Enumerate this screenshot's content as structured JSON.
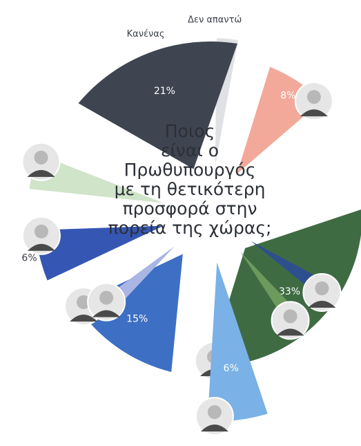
{
  "chart_data": {
    "type": "pie",
    "title": "Ποιος είναι ο Πρωθυπουργός με τη θετικότερη προσφορά στην πορεία της χώρας;",
    "title_lines": [
      "Ποιος",
      "είναι ο",
      "Πρωθυπουργός",
      "με τη θετικότερη",
      "προσφορά στην",
      "πορεία της χώρας;"
    ],
    "slices": [
      {
        "value": 2,
        "label": "Δεν απαντώ",
        "value_label": "2%",
        "color": "#dfe1e5",
        "portrait": false
      },
      {
        "value": 8,
        "label": "",
        "value_label": "8%",
        "color": "#f2a99a",
        "portrait": true
      },
      {
        "value": 33,
        "label": "",
        "value_label": "33%",
        "color": "#3f6b43",
        "portrait": true
      },
      {
        "value": 2,
        "label": "",
        "value_label": "2%",
        "color": "#2d4f8e",
        "portrait": true
      },
      {
        "value": 2,
        "label": "",
        "value_label": "2%",
        "color": "#6b9a5c",
        "portrait": true
      },
      {
        "value": 6,
        "label": "",
        "value_label": "6%",
        "color": "#7ab1e6",
        "portrait": true
      },
      {
        "value": 15,
        "label": "",
        "value_label": "15%",
        "color": "#3d6fc4",
        "portrait": true
      },
      {
        "value": 2,
        "label": "",
        "value_label": "2%",
        "color": "#a9b6e3",
        "portrait": true
      },
      {
        "value": 6,
        "label": "",
        "value_label": "6%",
        "color": "#3656b3",
        "portrait": true
      },
      {
        "value": 4,
        "label": "",
        "value_label": "4%",
        "color": "#cfe4c8",
        "portrait": true
      },
      {
        "value": 21,
        "label": "Κανένας",
        "value_label": "21%",
        "color": "#3e4550",
        "portrait": false
      }
    ]
  }
}
